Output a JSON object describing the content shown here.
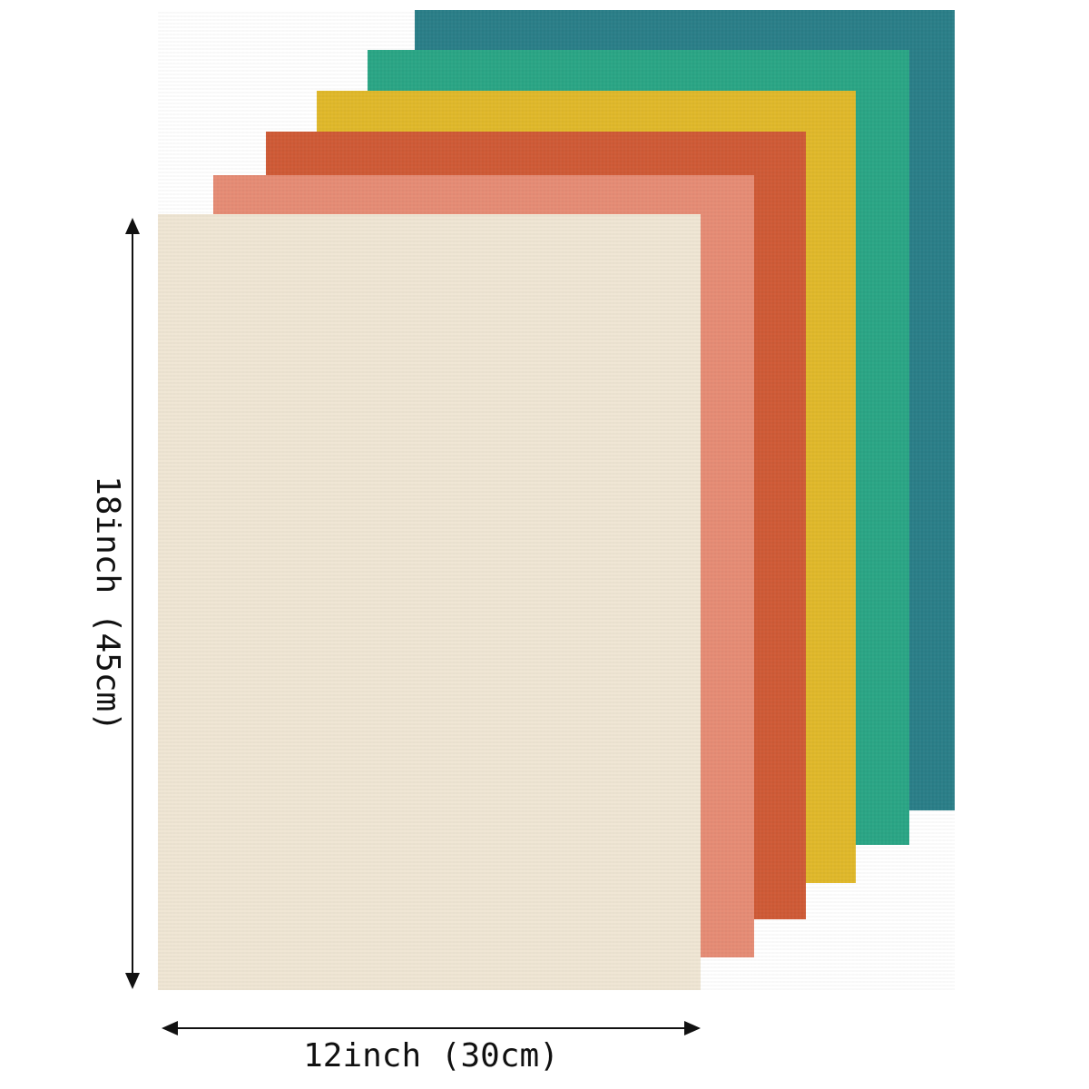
{
  "dimensions": {
    "height_label": "18inch (45cm)",
    "width_label": "12inch (30cm)"
  }
}
